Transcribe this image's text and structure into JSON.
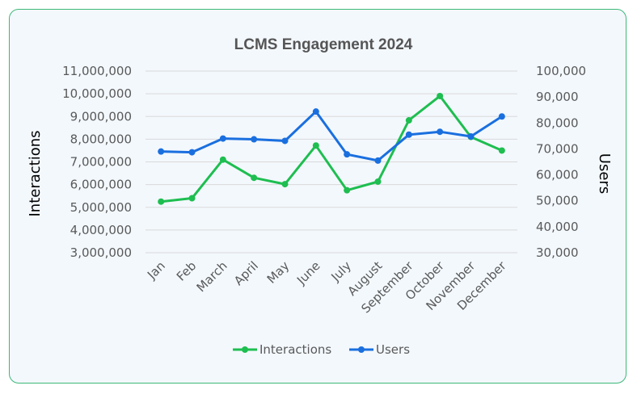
{
  "chart_data": {
    "type": "line",
    "title": "LCMS Engagement 2024",
    "categories": [
      "Jan",
      "Feb",
      "March",
      "April",
      "May",
      "June",
      "July",
      "August",
      "September",
      "October",
      "November",
      "December"
    ],
    "y_left": {
      "label": "Interactions",
      "range": [
        3000000,
        11000000
      ],
      "ticks": [
        "3,000,000",
        "4,000,000",
        "5,000,000",
        "6,000,000",
        "7,000,000",
        "8,000,000",
        "9,000,000",
        "10,000,000",
        "11,000,000"
      ]
    },
    "y_right": {
      "label": "Users",
      "range": [
        30000,
        100000
      ],
      "ticks": [
        "30,000",
        "40,000",
        "50,000",
        "60,000",
        "70,000",
        "80,000",
        "90,000",
        "100,000"
      ]
    },
    "series": [
      {
        "name": "Interactions",
        "axis": "left",
        "color": "#1ebe50",
        "values": [
          5250000,
          5400000,
          7100000,
          6300000,
          6020000,
          7720000,
          5750000,
          6130000,
          8830000,
          9900000,
          8100000,
          7500000
        ]
      },
      {
        "name": "Users",
        "axis": "right",
        "color": "#1a6fdf",
        "values": [
          69000,
          68700,
          74000,
          73700,
          73100,
          84400,
          67900,
          65500,
          75500,
          76600,
          74800,
          82500
        ]
      }
    ],
    "grid": true,
    "legend_position": "bottom"
  }
}
